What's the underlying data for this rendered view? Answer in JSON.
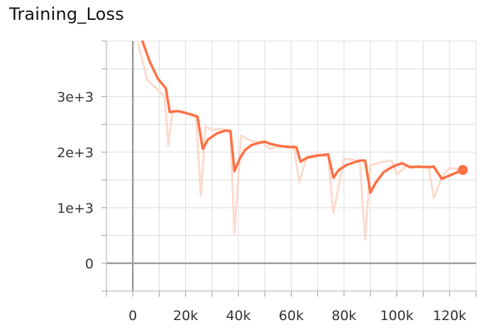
{
  "chart_data": {
    "type": "line",
    "title": "Training_Loss",
    "xlabel": "",
    "ylabel": "",
    "xlim": [
      -10000,
      130000
    ],
    "ylim": [
      -500,
      4000
    ],
    "x_ticks": [
      0,
      20000,
      40000,
      60000,
      80000,
      100000,
      120000
    ],
    "x_tick_labels": [
      "0",
      "20k",
      "40k",
      "60k",
      "80k",
      "100k",
      "120k"
    ],
    "y_ticks": [
      0,
      1000,
      2000,
      3000
    ],
    "y_tick_labels": [
      "0",
      "1e+3",
      "2e+3",
      "3e+3"
    ],
    "grid": true,
    "series": [
      {
        "role": "raw",
        "color": "#fbd5c7",
        "x": [
          2000,
          5500,
          9500,
          12000,
          13500,
          15000,
          20000,
          24000,
          25800,
          27500,
          30000,
          34000,
          37000,
          38500,
          41000,
          45000,
          49000,
          52000,
          55000,
          59000,
          61000,
          63000,
          66000,
          70000,
          74000,
          76000,
          80000,
          84000,
          86000,
          88000,
          90000,
          94000,
          98000,
          100000,
          104000,
          108000,
          112000,
          114000,
          117000,
          120000,
          123000
        ],
        "values": [
          3950,
          3300,
          3120,
          3000,
          2120,
          2750,
          2720,
          2620,
          1210,
          2460,
          2400,
          2420,
          2350,
          540,
          2300,
          2200,
          2180,
          2060,
          2110,
          2080,
          2120,
          1450,
          1930,
          1950,
          1920,
          900,
          1880,
          1860,
          1800,
          430,
          1760,
          1820,
          1850,
          1600,
          1760,
          1720,
          1750,
          1170,
          1540,
          1720,
          1690
        ]
      },
      {
        "role": "smoothed",
        "color": "#ff7043",
        "x": [
          3700,
          6500,
          9500,
          12500,
          14000,
          17000,
          22000,
          24500,
          26500,
          28500,
          32000,
          35000,
          37000,
          38500,
          40500,
          42500,
          45000,
          48000,
          50000,
          52000,
          56000,
          60000,
          62000,
          63500,
          66000,
          70000,
          74000,
          76000,
          78000,
          81000,
          84000,
          86000,
          88000,
          90000,
          92000,
          95000,
          98000,
          100000,
          102000,
          105000,
          108000,
          112000,
          114000,
          117000,
          120000,
          125000
        ],
        "values": [
          3990,
          3620,
          3320,
          3150,
          2720,
          2740,
          2680,
          2640,
          2060,
          2230,
          2340,
          2390,
          2380,
          1660,
          1880,
          2040,
          2130,
          2170,
          2190,
          2150,
          2110,
          2090,
          2090,
          1830,
          1900,
          1940,
          1960,
          1540,
          1680,
          1770,
          1820,
          1850,
          1850,
          1270,
          1450,
          1640,
          1730,
          1770,
          1800,
          1730,
          1740,
          1730,
          1740,
          1520,
          1580,
          1680
        ]
      }
    ],
    "endpoint_marker": {
      "x": 125000,
      "value": 1680
    }
  }
}
